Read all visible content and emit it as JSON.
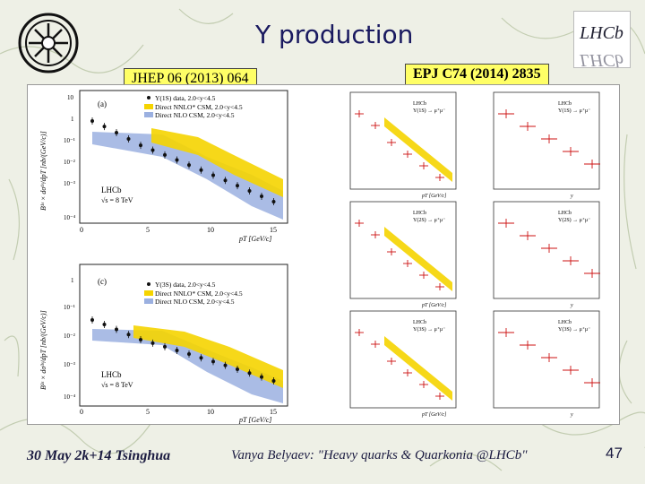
{
  "slide": {
    "title_symbol": "Υ",
    "title_text": "production",
    "ref_left": "JHEP 06 (2013) 064",
    "ref_right": "EPJ C74 (2014) 2835",
    "footer_date": "30 May 2k+14 Tsinghua",
    "footer_talk": "Vanya Belyaev: \"Heavy quarks & Quarkonia @LHCb\"",
    "page_number": "47",
    "logo_right_text_top": "LHCb",
    "logo_right_text_bottom": "LHCb"
  },
  "left_plots": {
    "top": {
      "panel_label": "(a)",
      "legend": [
        "Υ(1S) data, 2.0<y<4.5",
        "Direct NNLO* CSM, 2.0<y<4.5",
        "Direct NLO CSM, 2.0<y<4.5"
      ],
      "experiment": "LHCb",
      "energy": "√s = 8 TeV",
      "ylabel": "B¹ˢ × dσ¹ˢ/dpT [nb/(GeV/c)]",
      "xlabel": "pT [GeV/c]",
      "yticks": [
        "10",
        "1",
        "10⁻¹",
        "10⁻²",
        "10⁻³",
        "10⁻⁴"
      ],
      "xticks": [
        "0",
        "5",
        "10",
        "15"
      ]
    },
    "bottom": {
      "panel_label": "(c)",
      "legend": [
        "Υ(3S) data, 2.0<y<4.5",
        "Direct NNLO* CSM, 2.0<y<4.5",
        "Direct NLO CSM, 2.0<y<4.5"
      ],
      "experiment": "LHCb",
      "energy": "√s = 8 TeV",
      "ylabel": "B³ˢ × dσ³ˢ/dpT [nb/(GeV/c)]",
      "xlabel": "pT [GeV/c]",
      "yticks": [
        "1",
        "10⁻¹",
        "10⁻²",
        "10⁻³",
        "10⁻⁴"
      ],
      "xticks": [
        "0",
        "5",
        "10",
        "15"
      ]
    }
  },
  "right_plots": {
    "rows": [
      {
        "decay": "Υ(1S) → μ⁺μ⁻",
        "experiment": "LHCb"
      },
      {
        "decay": "Υ(2S) → μ⁺μ⁻",
        "experiment": "LHCb"
      },
      {
        "decay": "Υ(3S) → μ⁺μ⁻",
        "experiment": "LHCb"
      }
    ],
    "xlabel_pt": "pT [GeV/c]",
    "xlabel_y": "y"
  },
  "colors": {
    "nnlo_band": "#f5d400",
    "nlo_band": "#9bb0e0",
    "data": "#111111",
    "red_data": "#cc1111",
    "title": "#1a1a60",
    "ref_box": "#ffff66"
  }
}
